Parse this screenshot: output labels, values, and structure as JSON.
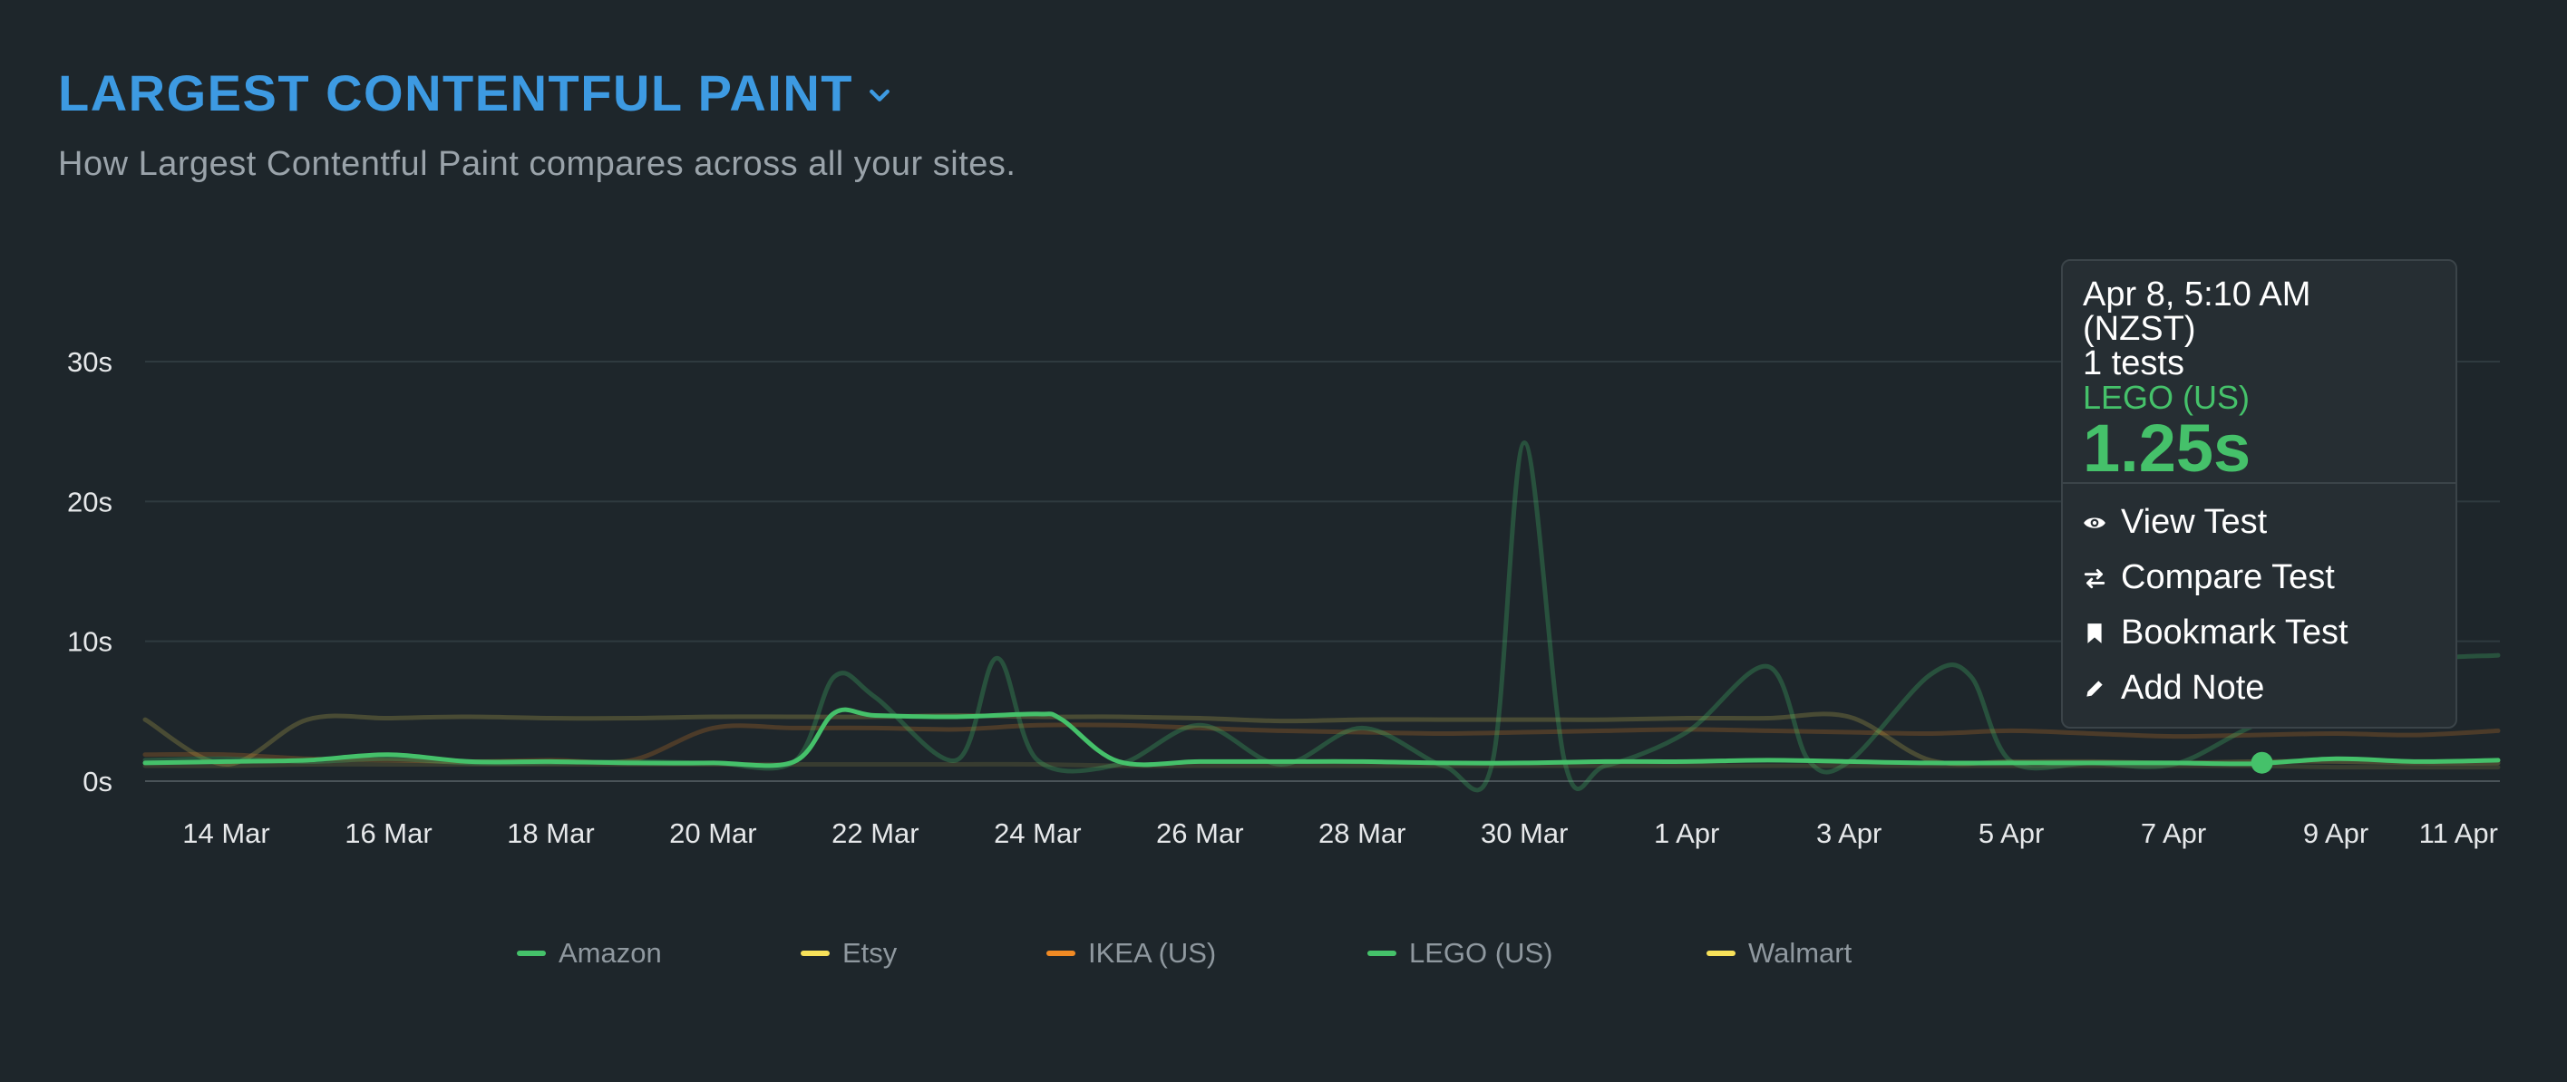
{
  "header": {
    "title": "LARGEST CONTENTFUL PAINT",
    "subtitle": "How Largest Contentful Paint compares across all your sites."
  },
  "colors": {
    "title": "#3d9ae2",
    "amazon": "#45c16a",
    "etsy": "#f7e15a",
    "ikea": "#f08a24",
    "lego": "#45c16a",
    "walmart": "#f7e15a"
  },
  "chart_data": {
    "type": "line",
    "x_unit": "date",
    "yticks": [
      "0s",
      "10s",
      "20s",
      "30s"
    ],
    "ylim": [
      0,
      30
    ],
    "xlim": [
      "13 Mar",
      "11 Apr"
    ],
    "xticks": [
      "14 Mar",
      "16 Mar",
      "18 Mar",
      "20 Mar",
      "22 Mar",
      "24 Mar",
      "26 Mar",
      "28 Mar",
      "30 Mar",
      "1 Apr",
      "3 Apr",
      "5 Apr",
      "7 Apr",
      "9 Apr",
      "11 Apr"
    ],
    "grid": true,
    "legend_position": "bottom",
    "series": [
      {
        "name": "Amazon",
        "color": "#45c16a",
        "opacity": 0.28,
        "x": [
          "13 Mar",
          "14 Mar",
          "15 Mar",
          "16 Mar",
          "17 Mar",
          "18 Mar",
          "19 Mar",
          "20 Mar",
          "21 Mar",
          "21.5 Mar",
          "22 Mar",
          "23 Mar",
          "23.5 Mar",
          "24 Mar",
          "25 Mar",
          "26 Mar",
          "27 Mar",
          "28 Mar",
          "29 Mar",
          "29.6 Mar",
          "30 Mar",
          "30.5 Mar",
          "31 Mar",
          "1 Apr",
          "2 Apr",
          "2.5 Apr",
          "3 Apr",
          "4 Apr",
          "4.5 Apr",
          "5 Apr",
          "6 Apr",
          "7 Apr",
          "8 Apr",
          "9 Apr",
          "10 Apr",
          "11 Apr"
        ],
        "y": [
          1.5,
          1.6,
          1.4,
          1.6,
          1.3,
          1.3,
          1.4,
          1.3,
          1.4,
          7.5,
          6,
          1.5,
          8.8,
          1.5,
          1.2,
          4,
          1.2,
          3.8,
          1.1,
          1.2,
          24.2,
          1.3,
          1.1,
          3.5,
          8.2,
          1.5,
          1.4,
          7.6,
          7.5,
          1.4,
          1.3,
          1.2,
          4,
          6,
          8.5,
          9
        ]
      },
      {
        "name": "Etsy",
        "color": "#f7e15a",
        "opacity": 0.2,
        "x": [
          "13 Mar",
          "14 Mar",
          "15 Mar",
          "16 Mar",
          "17 Mar",
          "18 Mar",
          "19 Mar",
          "20 Mar",
          "21 Mar",
          "22 Mar",
          "23 Mar",
          "24 Mar",
          "25 Mar",
          "26 Mar",
          "27 Mar",
          "28 Mar",
          "29 Mar",
          "30 Mar",
          "31 Mar",
          "1 Apr",
          "2 Apr",
          "3 Apr",
          "4 Apr",
          "5 Apr",
          "6 Apr",
          "7 Apr",
          "8 Apr",
          "9 Apr",
          "10 Apr",
          "11 Apr"
        ],
        "y": [
          4.4,
          1.2,
          4.4,
          4.5,
          4.6,
          4.5,
          4.5,
          4.6,
          4.6,
          4.6,
          4.7,
          4.6,
          4.6,
          4.5,
          4.3,
          4.4,
          4.4,
          4.4,
          4.4,
          4.5,
          4.5,
          4.6,
          1.5,
          1.4,
          1.4,
          1.3,
          1.4,
          1.4,
          1.3,
          1.3
        ]
      },
      {
        "name": "IKEA (US)",
        "color": "#f08a24",
        "opacity": 0.22,
        "x": [
          "13 Mar",
          "14 Mar",
          "15 Mar",
          "16 Mar",
          "17 Mar",
          "18 Mar",
          "19 Mar",
          "20 Mar",
          "21 Mar",
          "22 Mar",
          "23 Mar",
          "24 Mar",
          "25 Mar",
          "26 Mar",
          "27 Mar",
          "28 Mar",
          "29 Mar",
          "30 Mar",
          "31 Mar",
          "1 Apr",
          "2 Apr",
          "3 Apr",
          "4 Apr",
          "5 Apr",
          "6 Apr",
          "7 Apr",
          "8 Apr",
          "9 Apr",
          "10 Apr",
          "11 Apr"
        ],
        "y": [
          1.9,
          1.9,
          1.6,
          1.5,
          1.4,
          1.5,
          1.5,
          3.8,
          3.8,
          3.8,
          3.7,
          4.0,
          4.0,
          3.8,
          3.6,
          3.5,
          3.4,
          3.5,
          3.6,
          3.7,
          3.6,
          3.5,
          3.4,
          3.6,
          3.4,
          3.2,
          3.3,
          3.4,
          3.3,
          3.6
        ]
      },
      {
        "name": "LEGO (US)",
        "color": "#45c16a",
        "opacity": 1,
        "x": [
          "13 Mar",
          "14 Mar",
          "15 Mar",
          "16 Mar",
          "17 Mar",
          "18 Mar",
          "19 Mar",
          "20 Mar",
          "21 Mar",
          "21.5 Mar",
          "22 Mar",
          "23 Mar",
          "24 Mar",
          "24.3 Mar",
          "25 Mar",
          "26 Mar",
          "27 Mar",
          "28 Mar",
          "29 Mar",
          "30 Mar",
          "31 Mar",
          "1 Apr",
          "2 Apr",
          "3 Apr",
          "4 Apr",
          "5 Apr",
          "6 Apr",
          "7 Apr",
          "8 Apr",
          "9 Apr",
          "10 Apr",
          "11 Apr"
        ],
        "y": [
          1.3,
          1.4,
          1.5,
          1.9,
          1.4,
          1.4,
          1.3,
          1.3,
          1.4,
          4.9,
          4.7,
          4.6,
          4.8,
          4.4,
          1.4,
          1.4,
          1.4,
          1.4,
          1.3,
          1.3,
          1.4,
          1.4,
          1.5,
          1.4,
          1.3,
          1.3,
          1.3,
          1.3,
          1.25,
          1.6,
          1.4,
          1.5
        ]
      },
      {
        "name": "Walmart",
        "color": "#f7e15a",
        "opacity": 0.12,
        "x": [
          "13 Mar",
          "14 Mar",
          "15 Mar",
          "16 Mar",
          "17 Mar",
          "18 Mar",
          "19 Mar",
          "20 Mar",
          "21 Mar",
          "22 Mar",
          "23 Mar",
          "24 Mar",
          "25 Mar",
          "26 Mar",
          "27 Mar",
          "28 Mar",
          "29 Mar",
          "30 Mar",
          "31 Mar",
          "1 Apr",
          "2 Apr",
          "3 Apr",
          "4 Apr",
          "5 Apr",
          "6 Apr",
          "7 Apr",
          "8 Apr",
          "9 Apr",
          "10 Apr",
          "11 Apr"
        ],
        "y": [
          1.1,
          1.1,
          1.2,
          1.2,
          1.2,
          1.2,
          1.2,
          1.2,
          1.2,
          1.2,
          1.2,
          1.2,
          1.1,
          1.1,
          1.1,
          1.1,
          1.1,
          1.1,
          1.1,
          1.1,
          1.1,
          1.1,
          1.1,
          1.1,
          1.1,
          1.1,
          1.1,
          1.0,
          1.0,
          1.0
        ]
      }
    ],
    "highlight": {
      "series": "LEGO (US)",
      "x": "8 Apr",
      "y": 1.25
    }
  },
  "legend": [
    {
      "label": "Amazon",
      "color": "#45c16a"
    },
    {
      "label": "Etsy",
      "color": "#f7e15a"
    },
    {
      "label": "IKEA (US)",
      "color": "#f08a24"
    },
    {
      "label": "LEGO (US)",
      "color": "#45c16a"
    },
    {
      "label": "Walmart",
      "color": "#f7e15a"
    }
  ],
  "tooltip": {
    "date": "Apr 8, 5:10 AM",
    "timezone": "(NZST)",
    "tests": "1 tests",
    "series": "LEGO (US)",
    "value": "1.25s",
    "actions": [
      {
        "label": "View Test",
        "icon": "eye-icon"
      },
      {
        "label": "Compare Test",
        "icon": "compare-arrows-icon"
      },
      {
        "label": "Bookmark Test",
        "icon": "bookmark-icon"
      },
      {
        "label": "Add Note",
        "icon": "pencil-icon"
      }
    ]
  }
}
